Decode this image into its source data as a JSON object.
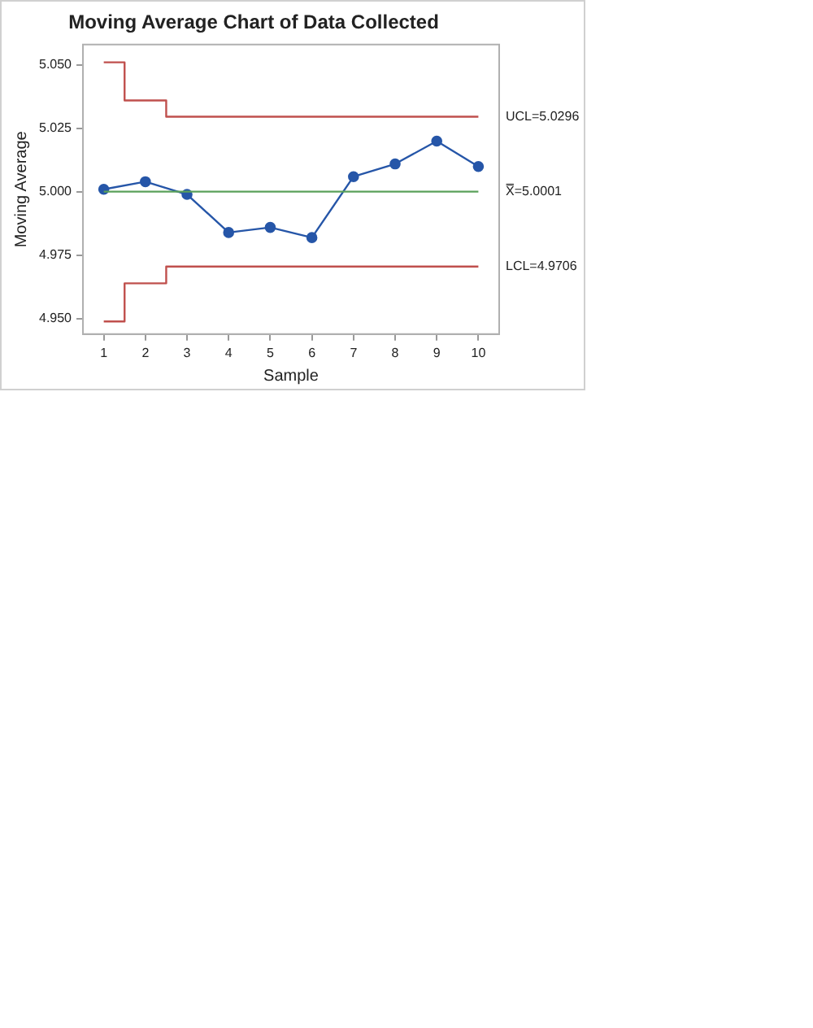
{
  "chart_data": {
    "type": "line",
    "title": "Moving Average Chart of Data Collected",
    "xlabel": "Sample",
    "ylabel": "Moving Average",
    "categories": [
      "1",
      "2",
      "3",
      "4",
      "5",
      "6",
      "7",
      "8",
      "9",
      "10"
    ],
    "series": [
      {
        "color": "#2656a8",
        "values": [
          5.001,
          5.004,
          4.999,
          4.984,
          4.986,
          4.982,
          5.006,
          5.011,
          5.02,
          5.01
        ],
        "marker": "circle"
      },
      {
        "name": "UCL=5.0296",
        "type": "step",
        "color": "#c0504d",
        "values": [
          5.051,
          5.036,
          5.0296,
          5.0296,
          5.0296,
          5.0296,
          5.0296,
          5.0296,
          5.0296,
          5.0296
        ],
        "marker": "none"
      },
      {
        "name": "LCL=4.9706",
        "type": "step",
        "color": "#c0504d",
        "values": [
          4.949,
          4.964,
          4.9706,
          4.9706,
          4.9706,
          4.9706,
          4.9706,
          4.9706,
          4.9706,
          4.9706
        ],
        "marker": "none"
      }
    ],
    "ref_lines": [
      {
        "axis": "y",
        "value": 5.0001,
        "label": "X̿=5.0001",
        "color": "#5aa05a"
      }
    ],
    "ylim": [
      4.944,
      5.058
    ],
    "yticks": [
      {
        "value": 4.95,
        "label": "4.950"
      },
      {
        "value": 4.975,
        "label": "4.975"
      },
      {
        "value": 5.0,
        "label": "5.000"
      },
      {
        "value": 5.025,
        "label": "5.025"
      },
      {
        "value": 5.05,
        "label": "5.050"
      }
    ],
    "grid": false,
    "legend": false,
    "line_style": "solid"
  }
}
